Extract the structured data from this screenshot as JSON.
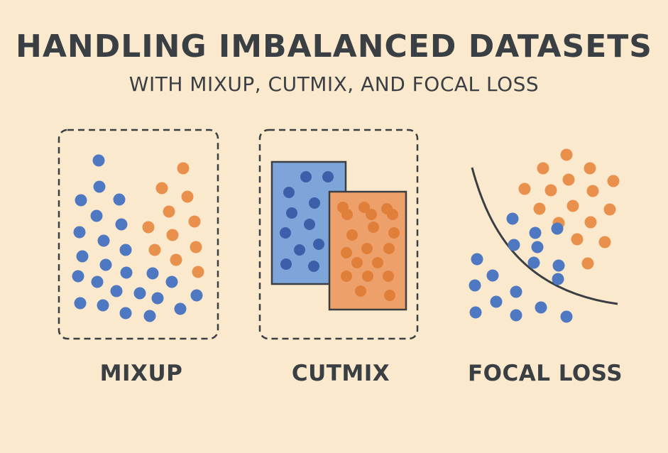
{
  "title": "HANDLING IMBALANCED DATASETS",
  "subtitle": "WITH MIXUP, CUTMIX, AND FOCAL LOSS",
  "labels": {
    "mixup": "MIXUP",
    "cutmix": "CUTMIX",
    "focal_loss": "FOCAL LOSS"
  },
  "colors": {
    "background": "#fbe9cd",
    "blue": "#4f78c2",
    "orange": "#e8904c",
    "blue_fill": "#7ea5d9",
    "orange_fill": "#eea06a",
    "outline": "#3a3f44"
  }
}
